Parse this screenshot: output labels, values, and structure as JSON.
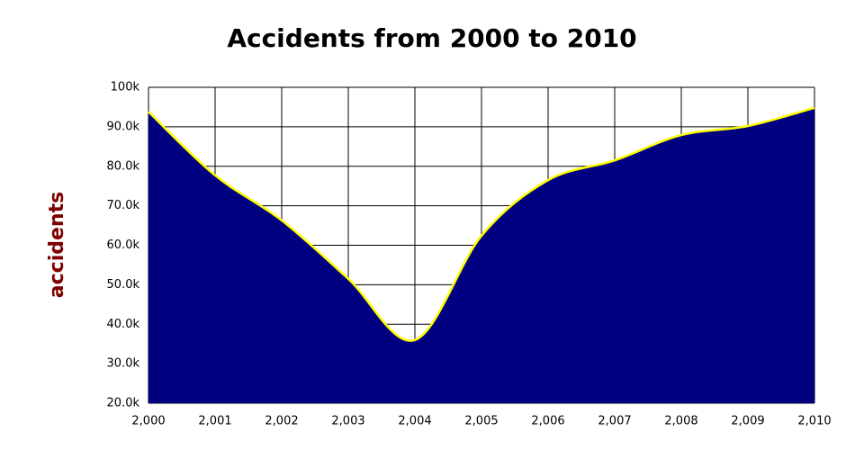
{
  "chart_data": {
    "type": "area",
    "title": "Accidents from 2000 to 2010",
    "y_label": "accidents",
    "x": [
      2000,
      2001,
      2002,
      2003,
      2004,
      2005,
      2006,
      2007,
      2008,
      2009,
      2010
    ],
    "values": [
      93800,
      77700,
      66300,
      51500,
      36000,
      62400,
      76500,
      81500,
      87900,
      90200,
      94800
    ],
    "color": "#000080",
    "line_color": "#ffff00",
    "xlim": [
      2000,
      2010
    ],
    "xticks": [
      {
        "value": 2000,
        "label": "2,000"
      },
      {
        "value": 2001,
        "label": "2,001"
      },
      {
        "value": 2002,
        "label": "2,002"
      },
      {
        "value": 2003,
        "label": "2,003"
      },
      {
        "value": 2004,
        "label": "2,004"
      },
      {
        "value": 2005,
        "label": "2,005"
      },
      {
        "value": 2006,
        "label": "2,006"
      },
      {
        "value": 2007,
        "label": "2,007"
      },
      {
        "value": 2008,
        "label": "2,008"
      },
      {
        "value": 2009,
        "label": "2,009"
      },
      {
        "value": 2010,
        "label": "2,010"
      }
    ],
    "ylim": [
      20000,
      100000
    ],
    "yticks": [
      {
        "value": 20000,
        "label": "20.0k"
      },
      {
        "value": 30000,
        "label": "30.0k"
      },
      {
        "value": 40000,
        "label": "40.0k"
      },
      {
        "value": 50000,
        "label": "50.0k"
      },
      {
        "value": 60000,
        "label": "60.0k"
      },
      {
        "value": 70000,
        "label": "70.0k"
      },
      {
        "value": 80000,
        "label": "80.0k"
      },
      {
        "value": 90000,
        "label": "90.0k"
      },
      {
        "value": 100000,
        "label": "100k"
      }
    ],
    "grid": true
  }
}
